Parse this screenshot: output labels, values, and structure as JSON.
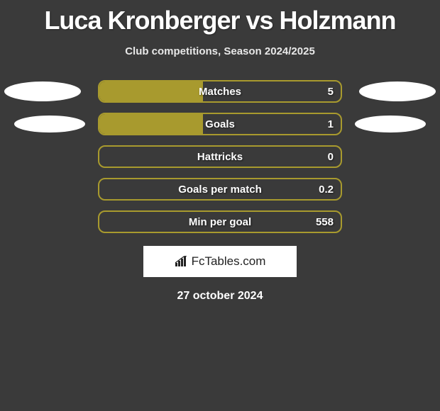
{
  "title": "Luca Kronberger vs Holzmann",
  "subtitle": "Club competitions, Season 2024/2025",
  "date": "27 october 2024",
  "brand": "FcTables.com",
  "colors": {
    "bar_fill": "#a89a2e",
    "bar_border": "#a89a2e",
    "background": "#3a3a3a",
    "text": "#ffffff"
  },
  "rows": [
    {
      "label": "Matches",
      "value": "5",
      "fill_pct": 43,
      "ellipse_left": true,
      "ellipse_left_small": false,
      "ellipse_right": true,
      "ellipse_right_small": false
    },
    {
      "label": "Goals",
      "value": "1",
      "fill_pct": 43,
      "ellipse_left": true,
      "ellipse_left_small": true,
      "ellipse_right": true,
      "ellipse_right_small": true
    },
    {
      "label": "Hattricks",
      "value": "0",
      "fill_pct": 0,
      "ellipse_left": false,
      "ellipse_left_small": false,
      "ellipse_right": false,
      "ellipse_right_small": false
    },
    {
      "label": "Goals per match",
      "value": "0.2",
      "fill_pct": 0,
      "ellipse_left": false,
      "ellipse_left_small": false,
      "ellipse_right": false,
      "ellipse_right_small": false
    },
    {
      "label": "Min per goal",
      "value": "558",
      "fill_pct": 0,
      "ellipse_left": false,
      "ellipse_left_small": false,
      "ellipse_right": false,
      "ellipse_right_small": false
    }
  ]
}
